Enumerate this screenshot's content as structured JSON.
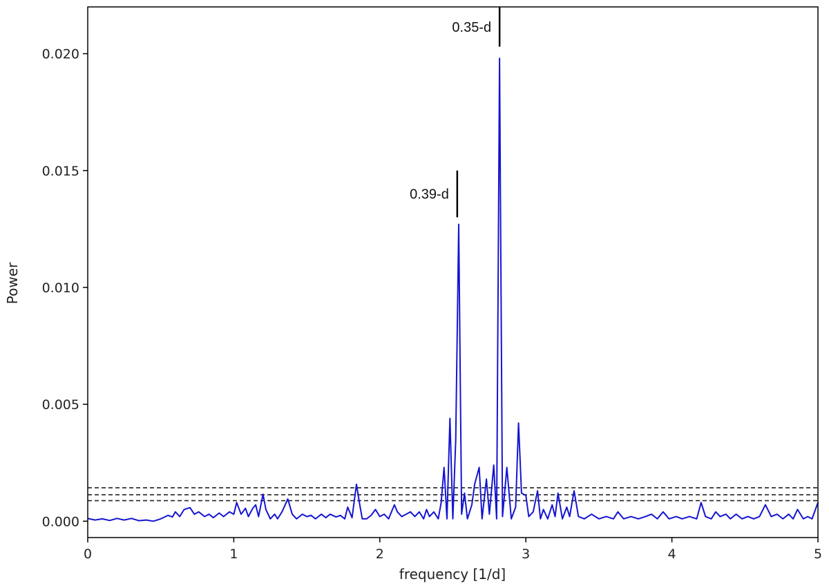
{
  "chart_data": {
    "type": "line",
    "title": "",
    "xlabel": "frequency [1/d]",
    "ylabel": "Power",
    "xlim": [
      0,
      5
    ],
    "ylim": [
      -0.0007,
      0.022
    ],
    "x_ticks": [
      0,
      1,
      2,
      3,
      4,
      5
    ],
    "x_tick_labels": [
      "0",
      "1",
      "2",
      "3",
      "4",
      "5"
    ],
    "y_ticks": [
      0.0,
      0.005,
      0.01,
      0.015,
      0.02
    ],
    "y_tick_labels": [
      "0.000",
      "0.005",
      "0.010",
      "0.015",
      "0.020"
    ],
    "grid": false,
    "line_color": "#1414d2",
    "threshold_lines": [
      0.00088,
      0.00113,
      0.00143
    ],
    "threshold_color": "#222222",
    "annotations": [
      {
        "label": "0.35-d",
        "x": 2.82,
        "y_bottom": 0.0203,
        "y_top": 0.022
      },
      {
        "label": "0.39-d",
        "x": 2.53,
        "y_bottom": 0.013,
        "y_top": 0.015
      }
    ],
    "series": [
      {
        "points": [
          [
            0.0,
            0.00012
          ],
          [
            0.05,
            5e-05
          ],
          [
            0.1,
            0.0001
          ],
          [
            0.15,
            3e-05
          ],
          [
            0.2,
            0.00012
          ],
          [
            0.25,
            5e-05
          ],
          [
            0.3,
            0.00012
          ],
          [
            0.35,
            2e-05
          ],
          [
            0.4,
            5e-05
          ],
          [
            0.45,
            0.0
          ],
          [
            0.5,
            0.0001
          ],
          [
            0.55,
            0.00025
          ],
          [
            0.58,
            0.00018
          ],
          [
            0.6,
            0.0004
          ],
          [
            0.63,
            0.0002
          ],
          [
            0.66,
            0.0005
          ],
          [
            0.7,
            0.00058
          ],
          [
            0.73,
            0.0003
          ],
          [
            0.76,
            0.0004
          ],
          [
            0.8,
            0.0002
          ],
          [
            0.83,
            0.0003
          ],
          [
            0.86,
            0.00015
          ],
          [
            0.9,
            0.00035
          ],
          [
            0.93,
            0.0002
          ],
          [
            0.97,
            0.0004
          ],
          [
            1.0,
            0.0003
          ],
          [
            1.02,
            0.0008
          ],
          [
            1.05,
            0.0003
          ],
          [
            1.08,
            0.00055
          ],
          [
            1.1,
            0.0002
          ],
          [
            1.13,
            0.00055
          ],
          [
            1.15,
            0.0007
          ],
          [
            1.17,
            0.0002
          ],
          [
            1.2,
            0.00115
          ],
          [
            1.22,
            0.0005
          ],
          [
            1.25,
            0.0001
          ],
          [
            1.28,
            0.0003
          ],
          [
            1.3,
            0.0001
          ],
          [
            1.33,
            0.0004
          ],
          [
            1.37,
            0.00095
          ],
          [
            1.4,
            0.0003
          ],
          [
            1.43,
            0.0001
          ],
          [
            1.47,
            0.0003
          ],
          [
            1.5,
            0.0002
          ],
          [
            1.53,
            0.00025
          ],
          [
            1.56,
            0.0001
          ],
          [
            1.6,
            0.0003
          ],
          [
            1.63,
            0.00015
          ],
          [
            1.66,
            0.0003
          ],
          [
            1.7,
            0.00018
          ],
          [
            1.73,
            0.00025
          ],
          [
            1.76,
            0.0001
          ],
          [
            1.78,
            0.0006
          ],
          [
            1.81,
            0.00015
          ],
          [
            1.84,
            0.00158
          ],
          [
            1.86,
            0.0008
          ],
          [
            1.88,
            0.0001
          ],
          [
            1.91,
            0.0001
          ],
          [
            1.94,
            0.00025
          ],
          [
            1.97,
            0.0005
          ],
          [
            2.0,
            0.0002
          ],
          [
            2.03,
            0.0003
          ],
          [
            2.06,
            0.0001
          ],
          [
            2.1,
            0.0007
          ],
          [
            2.12,
            0.0004
          ],
          [
            2.15,
            0.0002
          ],
          [
            2.18,
            0.0003
          ],
          [
            2.21,
            0.0004
          ],
          [
            2.24,
            0.0002
          ],
          [
            2.27,
            0.0004
          ],
          [
            2.3,
            0.0001
          ],
          [
            2.32,
            0.0005
          ],
          [
            2.34,
            0.0002
          ],
          [
            2.37,
            0.0004
          ],
          [
            2.4,
            0.0001
          ],
          [
            2.42,
            0.0008
          ],
          [
            2.44,
            0.0023
          ],
          [
            2.46,
            0.0001
          ],
          [
            2.48,
            0.0044
          ],
          [
            2.5,
            0.0001
          ],
          [
            2.52,
            0.0035
          ],
          [
            2.54,
            0.0127
          ],
          [
            2.56,
            0.0003
          ],
          [
            2.58,
            0.0012
          ],
          [
            2.6,
            0.0001
          ],
          [
            2.63,
            0.0007
          ],
          [
            2.65,
            0.0016
          ],
          [
            2.68,
            0.0023
          ],
          [
            2.7,
            0.0001
          ],
          [
            2.73,
            0.0018
          ],
          [
            2.75,
            0.0003
          ],
          [
            2.78,
            0.0024
          ],
          [
            2.8,
            0.0001
          ],
          [
            2.82,
            0.0198
          ],
          [
            2.84,
            0.0002
          ],
          [
            2.87,
            0.0023
          ],
          [
            2.9,
            0.0001
          ],
          [
            2.93,
            0.0006
          ],
          [
            2.95,
            0.0042
          ],
          [
            2.97,
            0.0012
          ],
          [
            3.0,
            0.0011
          ],
          [
            3.02,
            0.0002
          ],
          [
            3.05,
            0.0004
          ],
          [
            3.08,
            0.0013
          ],
          [
            3.1,
            0.0001
          ],
          [
            3.12,
            0.0005
          ],
          [
            3.15,
            0.0001
          ],
          [
            3.18,
            0.0007
          ],
          [
            3.2,
            0.0002
          ],
          [
            3.22,
            0.0012
          ],
          [
            3.25,
            0.0001
          ],
          [
            3.28,
            0.0006
          ],
          [
            3.3,
            0.0002
          ],
          [
            3.33,
            0.0013
          ],
          [
            3.36,
            0.0002
          ],
          [
            3.4,
            0.0001
          ],
          [
            3.45,
            0.0003
          ],
          [
            3.5,
            0.0001
          ],
          [
            3.55,
            0.0002
          ],
          [
            3.6,
            0.0001
          ],
          [
            3.63,
            0.0004
          ],
          [
            3.67,
            0.0001
          ],
          [
            3.72,
            0.0002
          ],
          [
            3.77,
            0.0001
          ],
          [
            3.82,
            0.0002
          ],
          [
            3.86,
            0.0003
          ],
          [
            3.9,
            0.0001
          ],
          [
            3.94,
            0.0004
          ],
          [
            3.98,
            0.0001
          ],
          [
            4.03,
            0.0002
          ],
          [
            4.07,
            0.0001
          ],
          [
            4.12,
            0.0002
          ],
          [
            4.17,
            0.0001
          ],
          [
            4.2,
            0.0008
          ],
          [
            4.23,
            0.0002
          ],
          [
            4.27,
            0.0001
          ],
          [
            4.3,
            0.0004
          ],
          [
            4.33,
            0.0002
          ],
          [
            4.37,
            0.0003
          ],
          [
            4.4,
            0.0001
          ],
          [
            4.44,
            0.0003
          ],
          [
            4.48,
            0.0001
          ],
          [
            4.52,
            0.0002
          ],
          [
            4.56,
            0.0001
          ],
          [
            4.6,
            0.0002
          ],
          [
            4.64,
            0.0007
          ],
          [
            4.68,
            0.0002
          ],
          [
            4.72,
            0.0003
          ],
          [
            4.76,
            0.0001
          ],
          [
            4.8,
            0.0003
          ],
          [
            4.83,
            0.0001
          ],
          [
            4.86,
            0.0005
          ],
          [
            4.9,
            0.0001
          ],
          [
            4.93,
            0.0002
          ],
          [
            4.96,
            0.0001
          ],
          [
            5.0,
            0.0008
          ]
        ]
      }
    ]
  }
}
